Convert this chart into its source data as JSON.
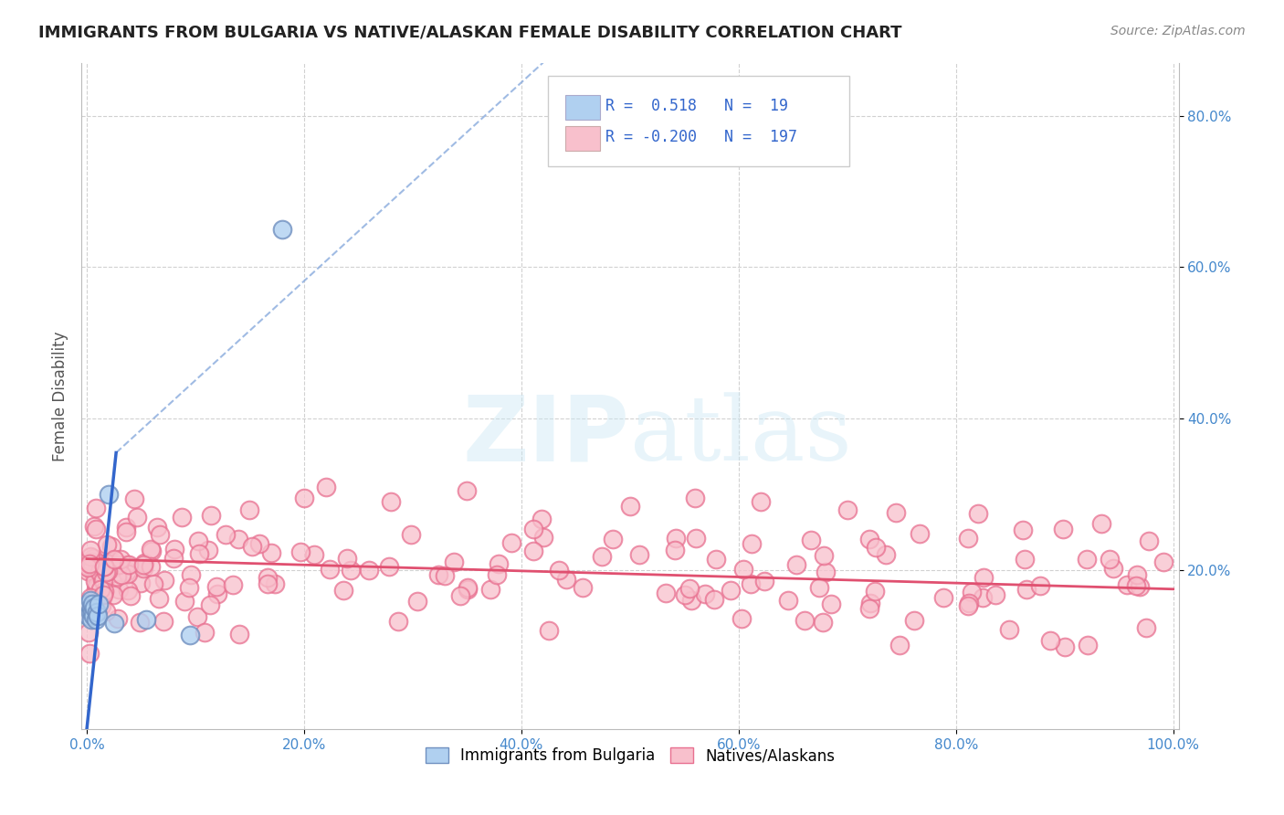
{
  "title": "IMMIGRANTS FROM BULGARIA VS NATIVE/ALASKAN FEMALE DISABILITY CORRELATION CHART",
  "source": "Source: ZipAtlas.com",
  "ylabel": "Female Disability",
  "watermark": "ZIPatlas",
  "legend_entries": [
    {
      "label": "Immigrants from Bulgaria",
      "R": 0.518,
      "N": 19,
      "color": "#a8c8e8",
      "line_color": "#3366cc"
    },
    {
      "label": "Natives/Alaskans",
      "R": -0.2,
      "N": 197,
      "color": "#f5b0c0",
      "line_color": "#e05070"
    }
  ],
  "xlim": [
    -0.005,
    1.005
  ],
  "ylim": [
    -0.01,
    0.87
  ],
  "xticks": [
    0.0,
    0.2,
    0.4,
    0.6,
    0.8,
    1.0
  ],
  "xtick_labels": [
    "0.0%",
    "20.0%",
    "40.0%",
    "60.0%",
    "80.0%",
    "100.0%"
  ],
  "yticks": [
    0.2,
    0.4,
    0.6,
    0.8
  ],
  "ytick_labels": [
    "20.0%",
    "40.0%",
    "60.0%",
    "80.0%"
  ],
  "grid_color": "#cccccc",
  "background_color": "#ffffff",
  "blue_solid_line_x": [
    0.0,
    0.027
  ],
  "blue_solid_line_y": [
    -0.01,
    0.355
  ],
  "blue_dash_line_x": [
    0.027,
    0.42
  ],
  "blue_dash_line_y": [
    0.355,
    0.87
  ],
  "pink_line_x": [
    0.0,
    1.0
  ],
  "pink_line_y": [
    0.215,
    0.175
  ]
}
